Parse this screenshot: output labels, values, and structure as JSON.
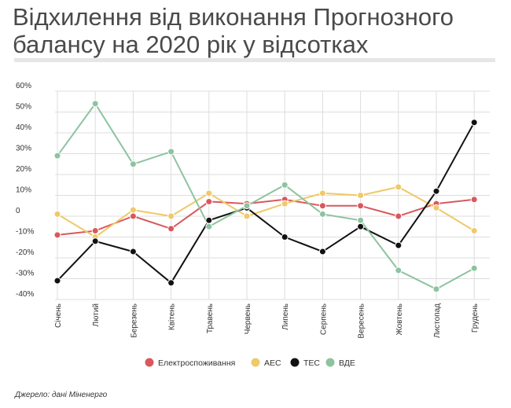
{
  "title": "Відхилення від виконання Прогнозного балансу на 2020 рік у відсотках",
  "source": "Джерело: дані Міненерго",
  "chart_data": {
    "type": "line",
    "categories": [
      "Січень",
      "Лютий",
      "Березень",
      "Квітень",
      "Травень",
      "Червень",
      "Липень",
      "Серпень",
      "Вересень",
      "Жовтень",
      "Листопад",
      "Грудень"
    ],
    "y_ticks": [
      "60%",
      "50%",
      "40%",
      "30%",
      "20%",
      "10%",
      "0",
      "-10%",
      "-20%",
      "-30%",
      "-40%"
    ],
    "ylim": [
      -40,
      60
    ],
    "grid": true,
    "legend_position": "bottom",
    "series": [
      {
        "name": "Електроспоживання",
        "color": "#d9585e",
        "values": [
          -9,
          -7,
          0,
          -6,
          7,
          6,
          8,
          5,
          5,
          0,
          6,
          8
        ]
      },
      {
        "name": "АЕС",
        "color": "#efc96a",
        "values": [
          1,
          -10,
          3,
          0,
          11,
          0,
          6,
          11,
          10,
          14,
          4,
          -7
        ]
      },
      {
        "name": "ТЕС",
        "color": "#111111",
        "values": [
          -31,
          -12,
          -17,
          -32,
          -2,
          4,
          -10,
          -17,
          -5,
          -14,
          12,
          45
        ]
      },
      {
        "name": "ВДЕ",
        "color": "#8dc3a0",
        "values": [
          29,
          54,
          25,
          31,
          -5,
          5,
          15,
          1,
          -2,
          -26,
          -35,
          -25
        ]
      }
    ]
  }
}
